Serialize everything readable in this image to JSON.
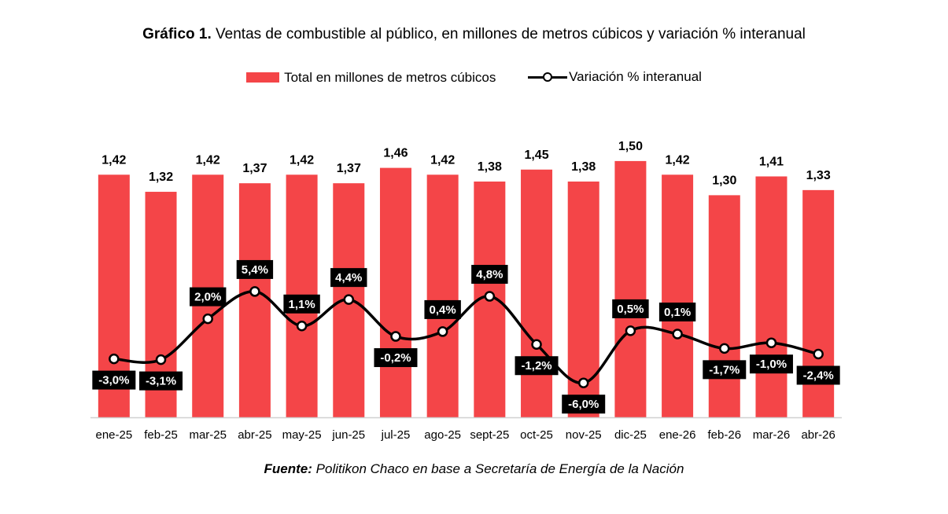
{
  "title": {
    "prefix": "Gráfico 1.",
    "text": "Ventas de combustible al público, en millones de metros cúbicos y variación % interanual"
  },
  "source": {
    "label": "Fuente:",
    "text": "Politikon Chaco en base a Secretaría de Energía de la Nación"
  },
  "chart_data": {
    "type": "bar",
    "categories": [
      "ene-25",
      "feb-25",
      "mar-25",
      "abr-25",
      "may-25",
      "jun-25",
      "jul-25",
      "ago-25",
      "sept-25",
      "oct-25",
      "nov-25",
      "dic-25",
      "ene-26",
      "feb-26",
      "mar-26",
      "abr-26"
    ],
    "series": [
      {
        "name": "Total en millones de metros cúbicos",
        "type": "bar",
        "color": "#f44548",
        "values": [
          1.42,
          1.32,
          1.42,
          1.37,
          1.42,
          1.37,
          1.46,
          1.42,
          1.38,
          1.45,
          1.38,
          1.5,
          1.42,
          1.3,
          1.41,
          1.33
        ],
        "labels": [
          "1,42",
          "1,32",
          "1,42",
          "1,37",
          "1,42",
          "1,37",
          "1,46",
          "1,42",
          "1,38",
          "1,45",
          "1,38",
          "1,50",
          "1,42",
          "1,30",
          "1,41",
          "1,33"
        ]
      },
      {
        "name": "Variación % interanual",
        "type": "line",
        "color": "#000000",
        "values": [
          -3.0,
          -3.1,
          2.0,
          5.4,
          1.1,
          4.4,
          -0.2,
          0.4,
          4.8,
          -1.2,
          -6.0,
          0.5,
          0.1,
          -1.7,
          -1.0,
          -2.4
        ],
        "labels": [
          "-3,0%",
          "-3,1%",
          "2,0%",
          "5,4%",
          "1,1%",
          "4,4%",
          "-0,2%",
          "0,4%",
          "4,8%",
          "-1,2%",
          "-6,0%",
          "0,5%",
          "0,1%",
          "-1,7%",
          "-1,0%",
          "-2,4%"
        ],
        "label_positions": [
          "below",
          "below",
          "above",
          "above",
          "above",
          "above",
          "below",
          "above",
          "above",
          "below",
          "below",
          "above",
          "above",
          "below",
          "below",
          "below"
        ]
      }
    ],
    "grid": false,
    "legend": "top-center"
  }
}
